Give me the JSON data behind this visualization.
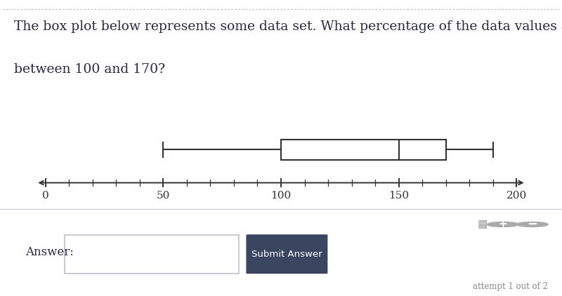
{
  "title_line1": "The box plot below represents some data set. What percentage of the data values are",
  "title_line2": "between 100 and 170?",
  "whisker_min": 50,
  "q1": 100,
  "median": 150,
  "q3": 170,
  "whisker_max": 190,
  "axis_data_min": 0,
  "axis_data_max": 200,
  "axis_ticks": [
    0,
    50,
    100,
    150,
    200
  ],
  "box_color": "white",
  "line_color": "#333333",
  "answer_label": "Answer:",
  "submit_label": "Submit Answer",
  "attempt_text": "attempt 1 out of 2",
  "bg_color": "#ffffff",
  "panel_bg": "#eeeff2",
  "panel_border": "#d0d0d8",
  "submit_color": "#3a4660",
  "title_color": "#2a2a40",
  "title_fontsize": 13.5,
  "axis_fontsize": 11,
  "dotted_border_color": "#bbbbbb"
}
